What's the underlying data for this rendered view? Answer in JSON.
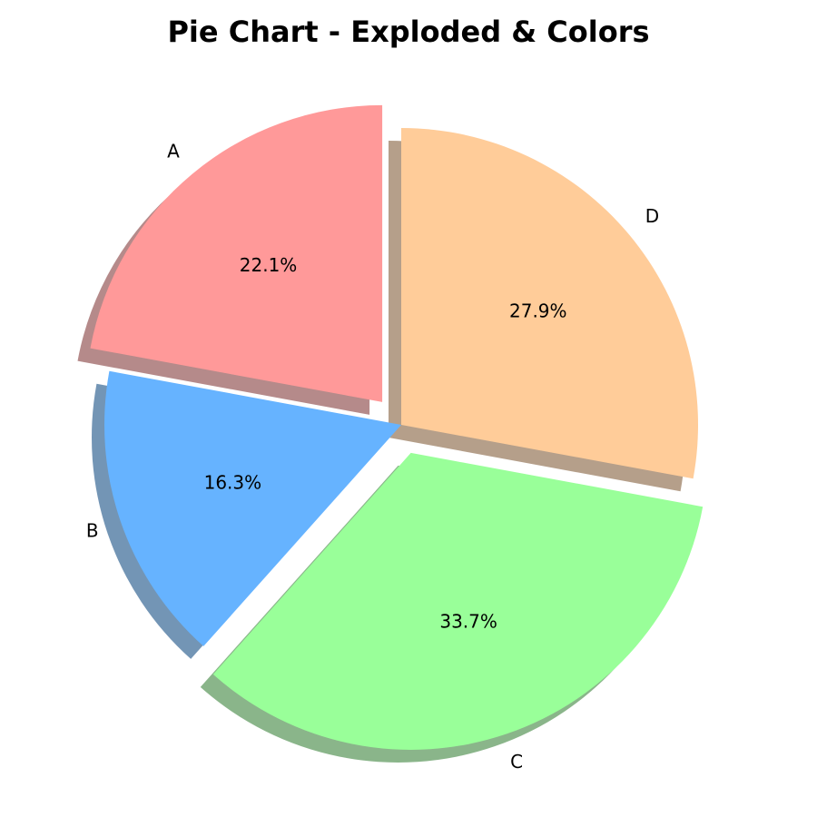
{
  "chart_data": {
    "type": "pie",
    "title": "Pie Chart - Exploded & Colors",
    "slices": [
      {
        "label": "A",
        "value": 22.1,
        "pct_label": "22.1%",
        "color": "#ff9999",
        "exploded": true
      },
      {
        "label": "B",
        "value": 16.3,
        "pct_label": "16.3%",
        "color": "#66b3ff",
        "exploded": false
      },
      {
        "label": "C",
        "value": 33.7,
        "pct_label": "33.7%",
        "color": "#99ff99",
        "exploded": true
      },
      {
        "label": "D",
        "value": 27.9,
        "pct_label": "27.9%",
        "color": "#ffcc99",
        "exploded": false
      }
    ],
    "start_angle_deg": 90,
    "direction": "counterclockwise",
    "shadow": true,
    "legend": "none"
  }
}
